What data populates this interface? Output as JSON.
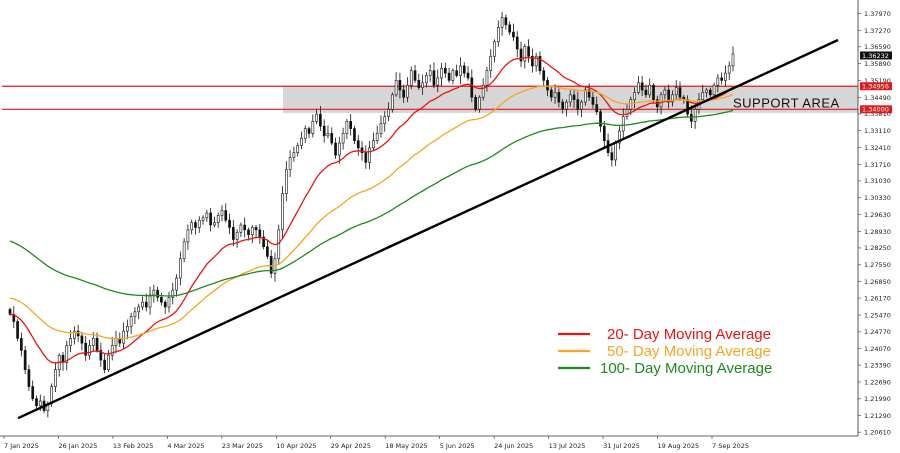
{
  "chart_data": {
    "type": "candlestick",
    "title": "",
    "xlabel": "",
    "ylabel": "",
    "ylim": [
      1.2045,
      1.3845
    ],
    "y_ticks": [
      "1.37970",
      "1.37270",
      "1.36590",
      "1.35890",
      "1.35190",
      "1.34490",
      "1.33810",
      "1.33110",
      "1.32410",
      "1.31710",
      "1.31030",
      "1.30330",
      "1.29630",
      "1.28930",
      "1.28250",
      "1.27550",
      "1.26850",
      "1.26170",
      "1.25470",
      "1.24770",
      "1.24070",
      "1.23390",
      "1.22690",
      "1.21990",
      "1.21290",
      "1.20610"
    ],
    "x_ticks": [
      "7 Jan 2025",
      "26 Jan 2025",
      "13 Feb 2025",
      "4 Mar 2025",
      "23 Mar 2025",
      "10 Apr 2025",
      "29 Apr 2025",
      "18 May 2025",
      "5 Jun 2025",
      "24 Jun 2025",
      "13 Jul 2025",
      "31 Jul 2025",
      "19 Aug 2025",
      "7 Sep 2025"
    ],
    "close_series": [
      1.255,
      1.252,
      1.245,
      1.24,
      1.232,
      1.225,
      1.22,
      1.217,
      1.219,
      1.215,
      1.218,
      1.225,
      1.232,
      1.238,
      1.235,
      1.242,
      1.245,
      1.248,
      1.246,
      1.243,
      1.238,
      1.242,
      1.245,
      1.24,
      1.236,
      1.232,
      1.238,
      1.242,
      1.245,
      1.243,
      1.248,
      1.25,
      1.254,
      1.256,
      1.258,
      1.26,
      1.258,
      1.263,
      1.265,
      1.262,
      1.26,
      1.258,
      1.262,
      1.265,
      1.27,
      1.278,
      1.285,
      1.29,
      1.293,
      1.291,
      1.294,
      1.295,
      1.297,
      1.292,
      1.293,
      1.296,
      1.298,
      1.294,
      1.291,
      1.286,
      1.289,
      1.292,
      1.29,
      1.288,
      1.291,
      1.29,
      1.287,
      1.283,
      1.279,
      1.272,
      1.278,
      1.29,
      1.305,
      1.315,
      1.32,
      1.322,
      1.325,
      1.328,
      1.332,
      1.33,
      1.335,
      1.338,
      1.333,
      1.329,
      1.33,
      1.326,
      1.321,
      1.326,
      1.33,
      1.335,
      1.332,
      1.327,
      1.324,
      1.322,
      1.318,
      1.324,
      1.327,
      1.33,
      1.334,
      1.337,
      1.34,
      1.346,
      1.352,
      1.348,
      1.345,
      1.35,
      1.356,
      1.352,
      1.349,
      1.351,
      1.354,
      1.356,
      1.35,
      1.353,
      1.357,
      1.355,
      1.352,
      1.356,
      1.354,
      1.358,
      1.355,
      1.353,
      1.345,
      1.34,
      1.345,
      1.35,
      1.356,
      1.362,
      1.368,
      1.374,
      1.378,
      1.375,
      1.372,
      1.37,
      1.365,
      1.36,
      1.366,
      1.362,
      1.358,
      1.362,
      1.356,
      1.352,
      1.348,
      1.345,
      1.347,
      1.343,
      1.34,
      1.343,
      1.346,
      1.344,
      1.34,
      1.343,
      1.348,
      1.345,
      1.342,
      1.339,
      1.333,
      1.327,
      1.322,
      1.319,
      1.326,
      1.331,
      1.337,
      1.34,
      1.344,
      1.347,
      1.351,
      1.348,
      1.346,
      1.35,
      1.344,
      1.341,
      1.346,
      1.348,
      1.343,
      1.346,
      1.349,
      1.345,
      1.344,
      1.338,
      1.335,
      1.34,
      1.344,
      1.347,
      1.348,
      1.346,
      1.35,
      1.353,
      1.352,
      1.355,
      1.358,
      1.363
    ],
    "series": [
      {
        "name": "20- Day Moving Average",
        "color": "#e81414",
        "period": 20
      },
      {
        "name": "50- Day Moving Average",
        "color": "#f5a623",
        "period": 50
      },
      {
        "name": "100- Day Moving Average",
        "color": "#1d8a1d",
        "period": 100
      }
    ],
    "current_price": "1.36232",
    "support_area": {
      "label": "SUPPORT AREA",
      "upper": "1.34956",
      "lower": "1.34000",
      "inner": "1.33850"
    },
    "trendline": {
      "from": [
        "7 Jan 2025",
        1.2119
      ],
      "to": [
        "7 Sep 2025",
        1.3435
      ],
      "extends": "right"
    },
    "grid": false,
    "legend_placement": "bottom-right"
  }
}
